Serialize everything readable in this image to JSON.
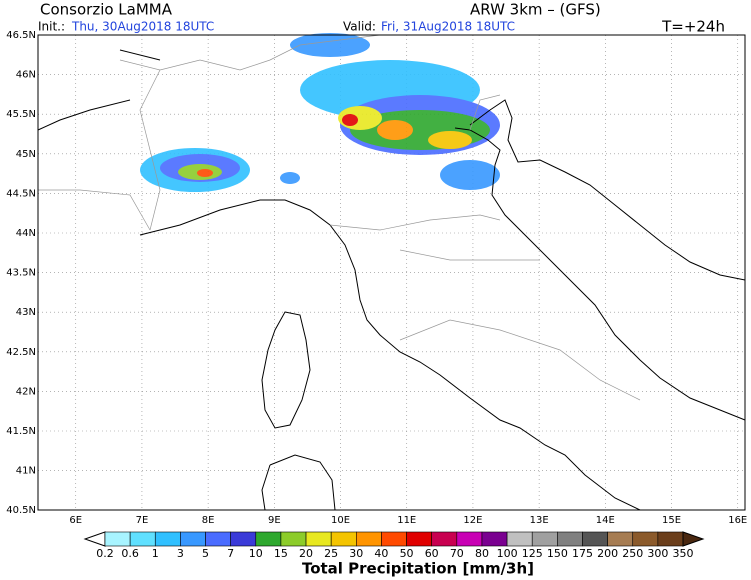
{
  "header": {
    "title": "Consorzio LaMMA",
    "model": "ARW 3km – (GFS)",
    "init_label": "Init.:",
    "init_time": "Thu, 30Aug2018 18UTC",
    "valid_label": "Valid:",
    "valid_time": "Fri, 31Aug2018 18UTC",
    "lead": "T=+24h"
  },
  "map": {
    "lat_ticks": [
      {
        "value": 46.5,
        "label": "46.5N"
      },
      {
        "value": 46,
        "label": "46N"
      },
      {
        "value": 45.5,
        "label": "45.5N"
      },
      {
        "value": 45,
        "label": "45N"
      },
      {
        "value": 44.5,
        "label": "44.5N"
      },
      {
        "value": 44,
        "label": "44N"
      },
      {
        "value": 43.5,
        "label": "43.5N"
      },
      {
        "value": 43,
        "label": "43N"
      },
      {
        "value": 42.5,
        "label": "42.5N"
      },
      {
        "value": 42,
        "label": "42N"
      },
      {
        "value": 41.5,
        "label": "41.5N"
      },
      {
        "value": 41,
        "label": "41N"
      },
      {
        "value": 40.5,
        "label": "40.5N"
      }
    ],
    "lon_ticks": [
      {
        "value": 6,
        "label": "6E"
      },
      {
        "value": 7,
        "label": "7E"
      },
      {
        "value": 8,
        "label": "8E"
      },
      {
        "value": 9,
        "label": "9E"
      },
      {
        "value": 10,
        "label": "10E"
      },
      {
        "value": 11,
        "label": "11E"
      },
      {
        "value": 12,
        "label": "12E"
      },
      {
        "value": 13,
        "label": "13E"
      },
      {
        "value": 14,
        "label": "14E"
      },
      {
        "value": 15,
        "label": "15E"
      },
      {
        "value": 16,
        "label": "16E"
      }
    ]
  },
  "colorbar": {
    "title": "Total Precipitation [mm/3h]",
    "labels": [
      "0.2",
      "0.6",
      "1",
      "3",
      "5",
      "7",
      "10",
      "15",
      "20",
      "25",
      "30",
      "40",
      "50",
      "60",
      "70",
      "80",
      "100",
      "125",
      "150",
      "175",
      "200",
      "250",
      "300",
      "350"
    ],
    "colors": [
      "#ffffff",
      "#a8f4ff",
      "#60e0ff",
      "#30c0ff",
      "#3898ff",
      "#4a6cff",
      "#3a3ad8",
      "#2ea82e",
      "#8ccc2a",
      "#e8e820",
      "#f4c400",
      "#ff9400",
      "#ff4a00",
      "#e00000",
      "#c80050",
      "#c800b4",
      "#7a0090",
      "#c0c0c0",
      "#a0a0a0",
      "#808080",
      "#555555",
      "#a67c52",
      "#8b5a2b",
      "#6b3e1b",
      "#4a2810"
    ]
  }
}
